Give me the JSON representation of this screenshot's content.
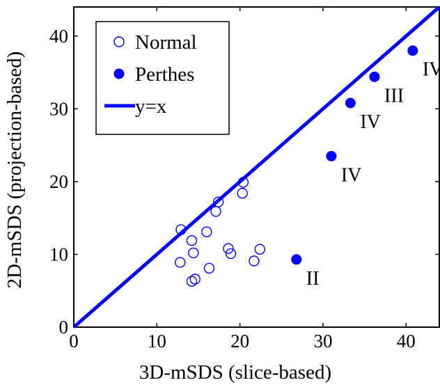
{
  "chart_data": {
    "type": "scatter",
    "xlabel": "3D-mSDS (slice-based)",
    "ylabel": "2D-mSDS (projection-based)",
    "xlim": [
      0,
      44
    ],
    "ylim": [
      0,
      44
    ],
    "xticks": [
      0,
      10,
      20,
      30,
      40
    ],
    "yticks": [
      0,
      10,
      20,
      30,
      40
    ],
    "grid": false,
    "legend_position": "top-left",
    "colors": {
      "series": "#0000ff",
      "axes": "#000000",
      "background": "#ffffff"
    },
    "series": [
      {
        "name": "Normal",
        "marker": "open-circle",
        "points": [
          {
            "x": 12.9,
            "y": 13.4
          },
          {
            "x": 12.8,
            "y": 8.9
          },
          {
            "x": 14.2,
            "y": 11.9
          },
          {
            "x": 14.4,
            "y": 10.2
          },
          {
            "x": 14.2,
            "y": 6.3
          },
          {
            "x": 14.6,
            "y": 6.6
          },
          {
            "x": 16.0,
            "y": 13.1
          },
          {
            "x": 16.3,
            "y": 8.1
          },
          {
            "x": 17.1,
            "y": 15.9
          },
          {
            "x": 17.4,
            "y": 17.2
          },
          {
            "x": 18.6,
            "y": 10.8
          },
          {
            "x": 18.9,
            "y": 10.1
          },
          {
            "x": 20.3,
            "y": 18.4
          },
          {
            "x": 20.4,
            "y": 19.9
          },
          {
            "x": 21.7,
            "y": 9.1
          },
          {
            "x": 22.4,
            "y": 10.7
          }
        ]
      },
      {
        "name": "Perthes",
        "marker": "filled-circle",
        "points": [
          {
            "x": 26.8,
            "y": 9.3,
            "label": "II"
          },
          {
            "x": 31.0,
            "y": 23.5,
            "label": "IV"
          },
          {
            "x": 33.3,
            "y": 30.8,
            "label": "IV"
          },
          {
            "x": 36.2,
            "y": 34.4,
            "label": "III"
          },
          {
            "x": 40.8,
            "y": 38.0,
            "label": "IV"
          }
        ]
      },
      {
        "name": "y=x",
        "marker": "line",
        "points": [
          {
            "x": 0,
            "y": 0
          },
          {
            "x": 44,
            "y": 44
          }
        ]
      }
    ]
  }
}
